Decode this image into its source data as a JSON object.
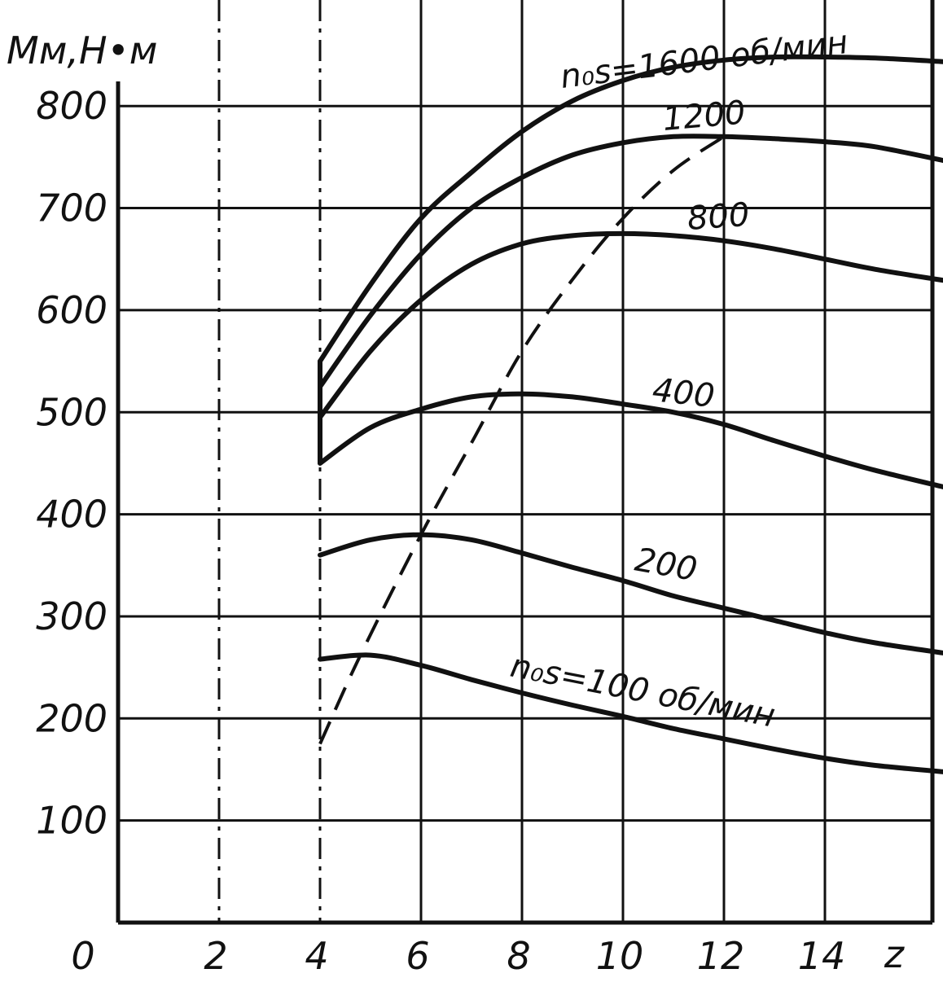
{
  "chart_data": {
    "type": "line",
    "title": "",
    "ylabel": "Mм,Н•м",
    "xlabel": "z",
    "xlim": [
      0,
      16.5
    ],
    "ylim": [
      0,
      850
    ],
    "grid": true,
    "x_ticks": [
      {
        "value": 2,
        "label": "2"
      },
      {
        "value": 4,
        "label": "4"
      },
      {
        "value": 6,
        "label": "6"
      },
      {
        "value": 8,
        "label": "8"
      },
      {
        "value": 10,
        "label": "10"
      },
      {
        "value": 12,
        "label": "12"
      },
      {
        "value": 14,
        "label": "14"
      }
    ],
    "y_ticks": [
      {
        "value": 100,
        "label": "100"
      },
      {
        "value": 200,
        "label": "200"
      },
      {
        "value": 300,
        "label": "300"
      },
      {
        "value": 400,
        "label": "400"
      },
      {
        "value": 500,
        "label": "500"
      },
      {
        "value": 600,
        "label": "600"
      },
      {
        "value": 700,
        "label": "700"
      },
      {
        "value": 800,
        "label": "800"
      }
    ],
    "origin_label": "0",
    "series": [
      {
        "name": "n₀s=1600 об/мин",
        "x": [
          4,
          5,
          6,
          7,
          8,
          9,
          10,
          11,
          12,
          13,
          14,
          15,
          16.5
        ],
        "y": [
          550,
          625,
          690,
          735,
          775,
          805,
          825,
          838,
          845,
          848,
          848,
          847,
          843
        ]
      },
      {
        "name": "1200",
        "x": [
          4,
          5,
          6,
          7,
          8,
          9,
          10,
          11,
          12,
          13,
          14,
          15,
          16.5
        ],
        "y": [
          525,
          595,
          655,
          700,
          730,
          752,
          764,
          770,
          770,
          768,
          765,
          760,
          745
        ]
      },
      {
        "name": "800",
        "x": [
          4,
          5,
          6,
          7,
          8,
          9,
          10,
          11,
          12,
          13,
          14,
          15,
          16.5
        ],
        "y": [
          495,
          560,
          610,
          645,
          665,
          673,
          675,
          673,
          668,
          660,
          650,
          640,
          628
        ]
      },
      {
        "name": "400",
        "x": [
          4,
          5,
          6,
          7,
          8,
          9,
          10,
          11,
          12,
          13,
          14,
          15,
          16.5
        ],
        "y": [
          450,
          485,
          503,
          515,
          518,
          515,
          508,
          500,
          488,
          472,
          457,
          443,
          425
        ]
      },
      {
        "name": "200",
        "x": [
          4,
          5,
          6,
          7,
          8,
          9,
          10,
          11,
          12,
          13,
          14,
          15,
          16.5
        ],
        "y": [
          360,
          375,
          380,
          375,
          362,
          348,
          335,
          320,
          308,
          296,
          284,
          274,
          263
        ]
      },
      {
        "name": "n₀s=100 об/мин",
        "x": [
          4,
          5,
          6,
          7,
          8,
          9,
          10,
          11,
          12,
          13,
          14,
          15,
          16.5
        ],
        "y": [
          258,
          262,
          252,
          238,
          225,
          213,
          202,
          190,
          180,
          170,
          161,
          154,
          147
        ]
      }
    ],
    "envelope": {
      "style": "dashed",
      "x": [
        4,
        4.8,
        6,
        7,
        8,
        9,
        10,
        11,
        12
      ],
      "y": [
        175,
        262,
        380,
        470,
        560,
        630,
        690,
        737,
        770
      ]
    }
  }
}
